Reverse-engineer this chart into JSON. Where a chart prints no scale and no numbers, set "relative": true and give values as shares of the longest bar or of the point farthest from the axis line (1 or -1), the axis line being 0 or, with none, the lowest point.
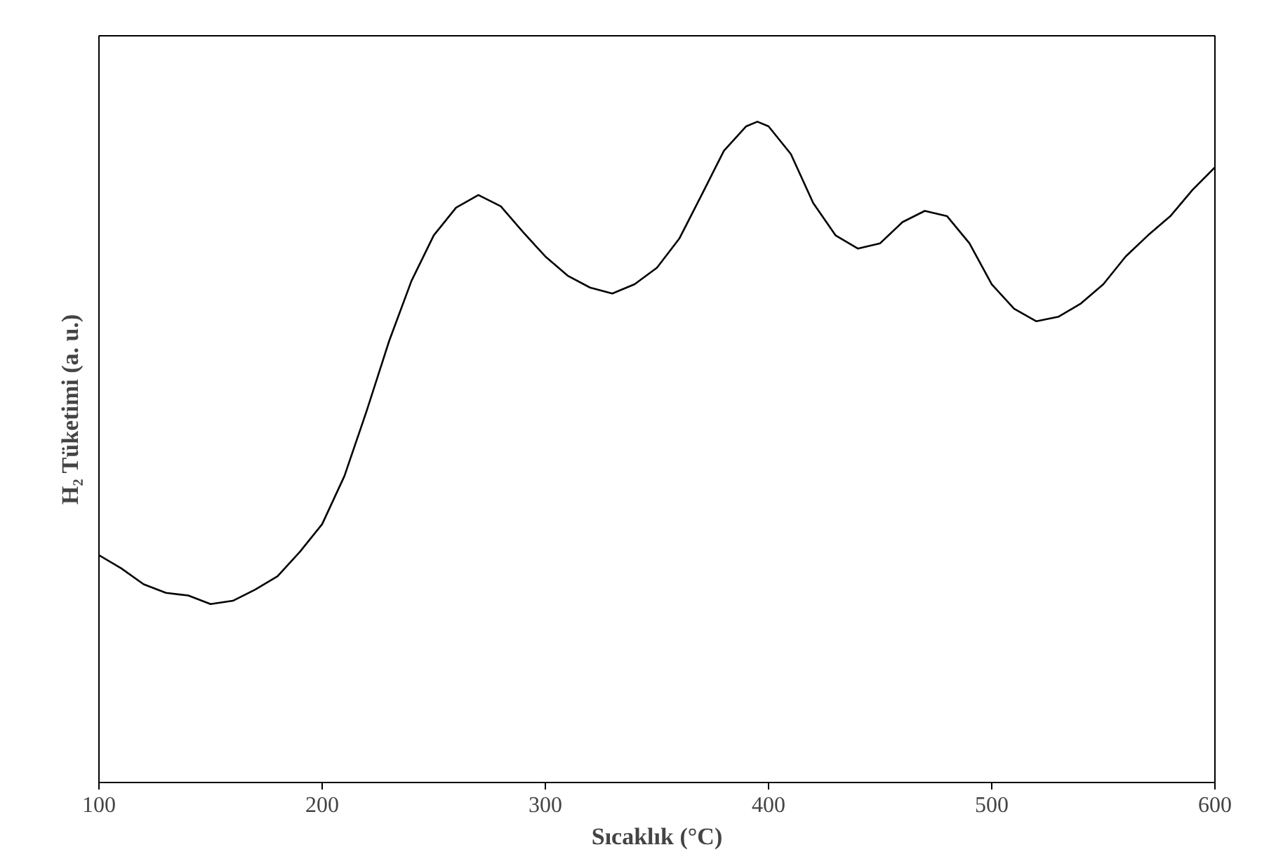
{
  "chart_data": {
    "type": "line",
    "xlabel": "Sıcaklık (°C)",
    "ylabel": "H₂ Tüketimi (a. u.)",
    "relative": true,
    "xlim": [
      100,
      600
    ],
    "xticks": [
      100,
      200,
      300,
      400,
      500,
      600
    ],
    "grid": false,
    "marker": "none",
    "line_style": "solid",
    "x": [
      100,
      110,
      120,
      130,
      140,
      150,
      160,
      170,
      180,
      190,
      200,
      210,
      220,
      230,
      240,
      250,
      260,
      270,
      280,
      290,
      300,
      310,
      320,
      330,
      340,
      350,
      360,
      370,
      380,
      390,
      395,
      400,
      410,
      420,
      430,
      440,
      450,
      460,
      470,
      480,
      490,
      500,
      510,
      520,
      530,
      540,
      550,
      560,
      570,
      580,
      590,
      600
    ],
    "series": [
      {
        "color": "#000000",
        "values": [
          0.344,
          0.324,
          0.3,
          0.287,
          0.283,
          0.27,
          0.275,
          0.292,
          0.312,
          0.349,
          0.391,
          0.464,
          0.563,
          0.668,
          0.759,
          0.828,
          0.87,
          0.889,
          0.872,
          0.833,
          0.796,
          0.767,
          0.749,
          0.74,
          0.754,
          0.779,
          0.823,
          0.889,
          0.956,
          0.993,
          1,
          0.993,
          0.951,
          0.877,
          0.828,
          0.808,
          0.816,
          0.848,
          0.865,
          0.857,
          0.816,
          0.754,
          0.717,
          0.698,
          0.705,
          0.725,
          0.754,
          0.796,
          0.828,
          0.857,
          0.897,
          0.931
        ]
      }
    ]
  }
}
